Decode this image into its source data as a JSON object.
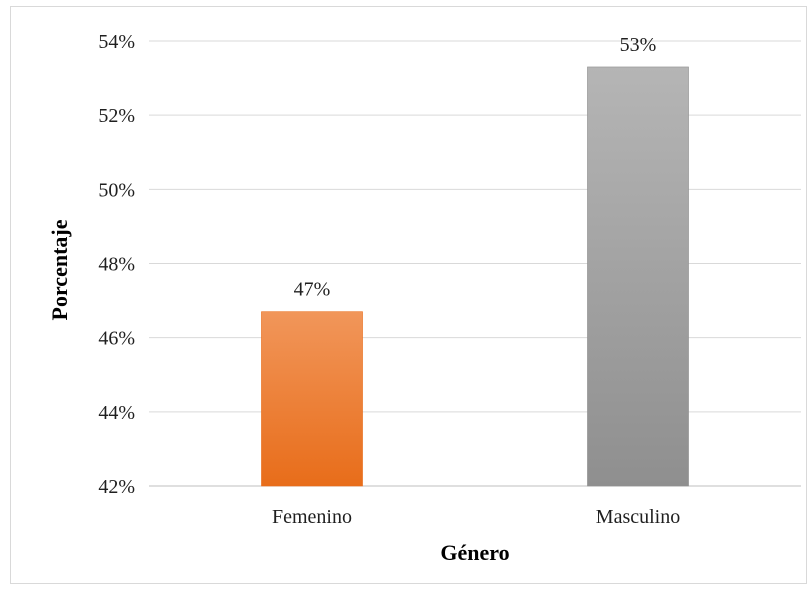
{
  "chart_data": {
    "type": "bar",
    "categories": [
      "Femenino",
      "Masculino"
    ],
    "values": [
      46.7,
      53.3
    ],
    "value_labels": [
      "47%",
      "53%"
    ],
    "title": "",
    "xlabel": "Género",
    "ylabel": "Porcentaje",
    "ylim": [
      42,
      54
    ],
    "ytick_values": [
      42,
      44,
      46,
      48,
      50,
      52,
      54
    ],
    "ytick_labels": [
      "42%",
      "44%",
      "46%",
      "48%",
      "50%",
      "52%",
      "54%"
    ],
    "grid": true,
    "legend": "none",
    "colors": {
      "Femenino": {
        "top": "#f1965a",
        "bottom": "#e86d1a"
      },
      "Masculino": {
        "top": "#b5b5b5",
        "bottom": "#8f8f8f"
      },
      "gridline": "#d9d9d9",
      "axis_line": "#bfbfbf"
    }
  }
}
